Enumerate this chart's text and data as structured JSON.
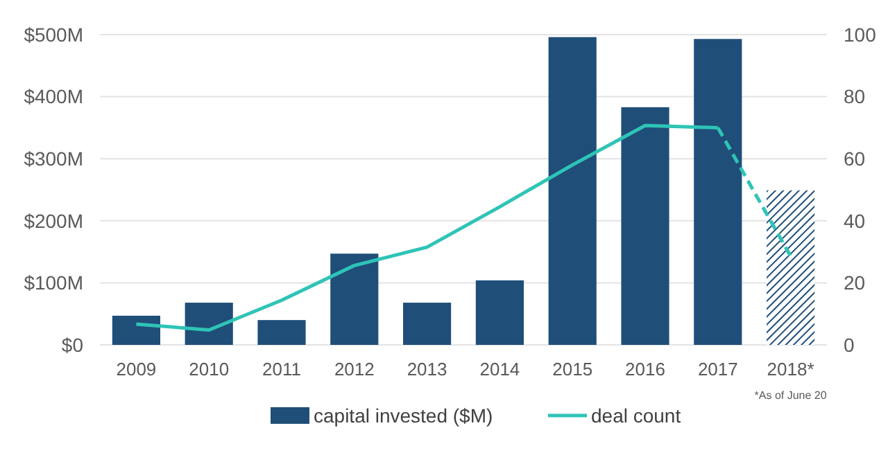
{
  "chart_data": {
    "type": "bar",
    "categories": [
      "2009",
      "2010",
      "2011",
      "2012",
      "2013",
      "2014",
      "2015",
      "2016",
      "2017",
      "2018*"
    ],
    "series": [
      {
        "name": "capital invested ($M)",
        "color": "#1f4e79",
        "values": [
          47,
          68,
          40,
          147,
          68,
          104,
          496,
          383,
          493,
          null
        ]
      },
      {
        "color": "#1f4e79",
        "line_style": "hatched",
        "values": [
          null,
          null,
          null,
          null,
          null,
          null,
          null,
          null,
          null,
          249
        ]
      },
      {
        "type": "line",
        "axis": "y2",
        "name": "deal count",
        "color": "#2ec4b6",
        "line_style": "solid",
        "values": [
          6.7,
          4.8,
          14.4,
          25.6,
          31.5,
          44.5,
          58,
          70.7,
          70,
          null
        ]
      },
      {
        "type": "line",
        "axis": "y2",
        "color": "#2ec4b6",
        "line_style": "dashed",
        "values": [
          null,
          null,
          null,
          null,
          null,
          null,
          null,
          null,
          70,
          28.6
        ]
      }
    ],
    "ylim": [
      0,
      500
    ],
    "yticks": [
      {
        "value": 0,
        "label": "$0"
      },
      {
        "value": 100,
        "label": "$100M"
      },
      {
        "value": 200,
        "label": "$200M"
      },
      {
        "value": 300,
        "label": "$300M"
      },
      {
        "value": 400,
        "label": "$400M"
      },
      {
        "value": 500,
        "label": "$500M"
      }
    ],
    "y2lim": [
      0,
      100
    ],
    "y2ticks": [
      0,
      20,
      40,
      60,
      80,
      100
    ],
    "grid": "y",
    "legend": "bottom",
    "annotations": [
      "*As of June 20"
    ]
  }
}
